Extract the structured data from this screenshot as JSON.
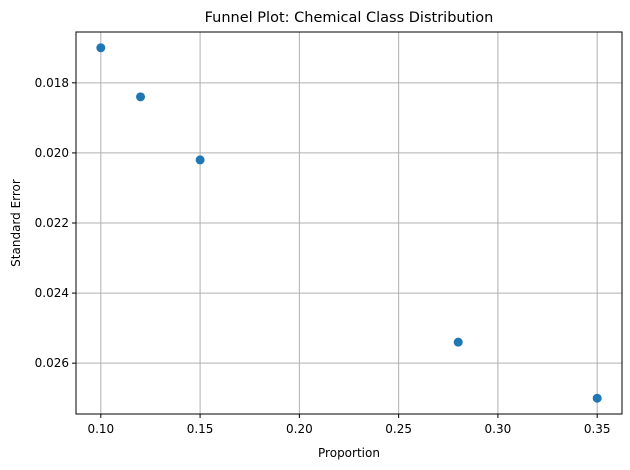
{
  "chart_data": {
    "type": "scatter",
    "title": "Funnel Plot: Chemical Class Distribution",
    "xlabel": "Proportion",
    "ylabel": "Standard Error",
    "y_inverted": true,
    "xlim": [
      0.0875,
      0.3625
    ],
    "ylim": [
      0.01655,
      0.02745
    ],
    "x_ticks": [
      0.1,
      0.15,
      0.2,
      0.25,
      0.3,
      0.35
    ],
    "x_tick_labels": [
      "0.10",
      "0.15",
      "0.20",
      "0.25",
      "0.30",
      "0.35"
    ],
    "y_ticks": [
      0.018,
      0.02,
      0.022,
      0.024,
      0.026
    ],
    "y_tick_labels": [
      "0.018",
      "0.020",
      "0.022",
      "0.024",
      "0.026"
    ],
    "grid": true,
    "marker_color": "#1f77b4",
    "points": [
      {
        "x": 0.1,
        "y": 0.017
      },
      {
        "x": 0.12,
        "y": 0.0184
      },
      {
        "x": 0.15,
        "y": 0.0202
      },
      {
        "x": 0.28,
        "y": 0.0254
      },
      {
        "x": 0.35,
        "y": 0.027
      }
    ]
  }
}
